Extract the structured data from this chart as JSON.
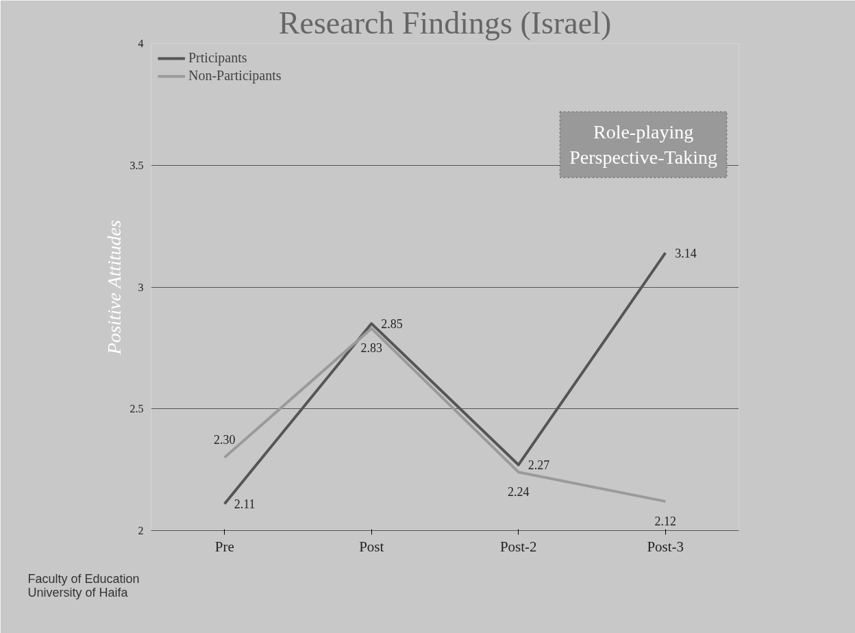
{
  "chart_data": {
    "type": "line",
    "title": "Research Findings (Israel)",
    "ylabel": "Positive Attitudes",
    "categories": [
      "Pre",
      "Post",
      "Post-2",
      "Post-3"
    ],
    "series": [
      {
        "name": "Prticipants",
        "color": "#555555",
        "values": [
          2.11,
          2.85,
          2.27,
          3.14
        ],
        "value_labels": [
          "2.11",
          "2.85",
          "2.27",
          "3.14"
        ]
      },
      {
        "name": "Non-Participants",
        "color": "#9a9a9a",
        "values": [
          2.3,
          2.83,
          2.24,
          2.12
        ],
        "value_labels": [
          "2.30",
          "2.83",
          "2.24",
          "2.12"
        ]
      }
    ],
    "ylim": [
      2,
      4
    ],
    "yticks": [
      2,
      2.5,
      3,
      3.5,
      4
    ],
    "grid": "y",
    "legend": "top left",
    "marker": "none",
    "line_style": "solid",
    "annotations": [
      "Role-playing\nPerspective-Taking",
      "Faculty of Education\nUniversity of Haifa"
    ]
  }
}
